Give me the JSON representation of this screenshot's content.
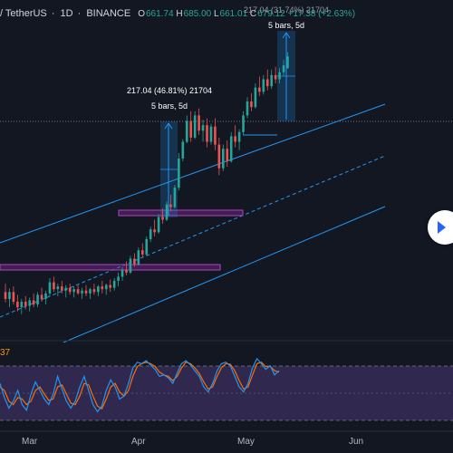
{
  "header": {
    "symbol": "/ TetherUS",
    "interval": "1D",
    "exchange": "BINANCE",
    "ohlc": {
      "o_label": "O",
      "o": "661.74",
      "h_label": "H",
      "h": "685.00",
      "l_label": "L",
      "l": "661.01",
      "c_label": "C",
      "c": "679.12",
      "change": "+17.38 (+2.63%)"
    }
  },
  "annotations": {
    "measure1_value": "217.04 (46.81%) 21704",
    "measure1_bars": "5 bars, 5d",
    "measure2_value": "217.04 (31.74%) 21704",
    "measure2_bars": "5 bars, 5d"
  },
  "oscillator": {
    "label": "37"
  },
  "colors": {
    "up": "#26a69a",
    "down": "#ef5350",
    "channel": "#2196f3",
    "zone": "#9c27b0",
    "k_line": "#2196f3",
    "d_line": "#ff6d00"
  },
  "icons": {
    "nav": "chevron-right-icon"
  },
  "chart_data": {
    "type": "candlestick",
    "x_ticks": [
      "Mar",
      "Apr",
      "May",
      "Jun"
    ],
    "price_ylim": [
      270,
      760
    ],
    "candles": [
      [
        340,
        352,
        325,
        330
      ],
      [
        330,
        345,
        318,
        340
      ],
      [
        340,
        348,
        322,
        326
      ],
      [
        326,
        336,
        312,
        318
      ],
      [
        318,
        330,
        308,
        326
      ],
      [
        326,
        334,
        315,
        320
      ],
      [
        320,
        332,
        312,
        328
      ],
      [
        328,
        338,
        318,
        322
      ],
      [
        322,
        340,
        318,
        336
      ],
      [
        336,
        346,
        326,
        330
      ],
      [
        330,
        342,
        322,
        338
      ],
      [
        338,
        360,
        334,
        354
      ],
      [
        354,
        362,
        340,
        344
      ],
      [
        344,
        352,
        334,
        348
      ],
      [
        348,
        356,
        338,
        342
      ],
      [
        342,
        350,
        332,
        346
      ],
      [
        346,
        352,
        336,
        340
      ],
      [
        340,
        348,
        332,
        344
      ],
      [
        344,
        350,
        336,
        338
      ],
      [
        338,
        346,
        330,
        342
      ],
      [
        342,
        350,
        334,
        338
      ],
      [
        338,
        346,
        330,
        344
      ],
      [
        344,
        352,
        336,
        340
      ],
      [
        340,
        350,
        334,
        348
      ],
      [
        348,
        356,
        338,
        344
      ],
      [
        344,
        352,
        336,
        350
      ],
      [
        350,
        358,
        340,
        346
      ],
      [
        346,
        360,
        342,
        356
      ],
      [
        356,
        368,
        348,
        362
      ],
      [
        362,
        376,
        356,
        372
      ],
      [
        372,
        384,
        364,
        368
      ],
      [
        368,
        392,
        366,
        388
      ],
      [
        388,
        396,
        376,
        380
      ],
      [
        380,
        404,
        378,
        400
      ],
      [
        400,
        410,
        390,
        394
      ],
      [
        394,
        420,
        392,
        416
      ],
      [
        416,
        434,
        412,
        430
      ],
      [
        430,
        444,
        420,
        426
      ],
      [
        426,
        452,
        424,
        448
      ],
      [
        448,
        460,
        438,
        444
      ],
      [
        444,
        470,
        442,
        466
      ],
      [
        466,
        480,
        456,
        462
      ],
      [
        462,
        494,
        460,
        490
      ],
      [
        490,
        540,
        486,
        532
      ],
      [
        532,
        560,
        528,
        556
      ],
      [
        556,
        594,
        554,
        586
      ],
      [
        586,
        600,
        556,
        562
      ],
      [
        562,
        600,
        560,
        594
      ],
      [
        594,
        604,
        566,
        572
      ],
      [
        572,
        588,
        556,
        580
      ],
      [
        580,
        590,
        548,
        556
      ],
      [
        556,
        582,
        552,
        578
      ],
      [
        578,
        590,
        544,
        552
      ],
      [
        552,
        562,
        508,
        518
      ],
      [
        518,
        552,
        514,
        546
      ],
      [
        546,
        558,
        520,
        528
      ],
      [
        528,
        570,
        526,
        564
      ],
      [
        564,
        580,
        548,
        556
      ],
      [
        556,
        574,
        544,
        570
      ],
      [
        570,
        600,
        566,
        594
      ],
      [
        594,
        620,
        590,
        614
      ],
      [
        614,
        626,
        600,
        606
      ],
      [
        606,
        640,
        604,
        634
      ],
      [
        634,
        650,
        622,
        628
      ],
      [
        628,
        652,
        624,
        646
      ],
      [
        646,
        660,
        630,
        636
      ],
      [
        636,
        660,
        632,
        652
      ],
      [
        652,
        664,
        640,
        646
      ],
      [
        646,
        662,
        640,
        656
      ],
      [
        656,
        674,
        650,
        666
      ],
      [
        662,
        685,
        661,
        679
      ]
    ],
    "stoch_k": [
      60,
      40,
      25,
      35,
      50,
      30,
      22,
      45,
      62,
      50,
      38,
      30,
      45,
      70,
      52,
      35,
      25,
      35,
      55,
      70,
      50,
      30,
      20,
      28,
      50,
      65,
      55,
      38,
      42,
      60,
      82,
      90,
      88,
      92,
      86,
      80,
      70,
      72,
      68,
      60,
      75,
      88,
      92,
      86,
      78,
      70,
      55,
      48,
      60,
      78,
      88,
      90,
      85,
      70,
      55,
      48,
      60,
      82,
      95,
      88,
      80,
      85,
      72,
      78
    ],
    "stoch_d": [
      55,
      50,
      35,
      30,
      40,
      38,
      30,
      35,
      50,
      55,
      45,
      36,
      38,
      55,
      58,
      45,
      32,
      30,
      42,
      60,
      58,
      42,
      28,
      24,
      38,
      55,
      60,
      48,
      42,
      50,
      70,
      84,
      88,
      90,
      88,
      84,
      76,
      72,
      70,
      64,
      70,
      82,
      90,
      88,
      82,
      74,
      62,
      52,
      55,
      70,
      82,
      88,
      87,
      78,
      64,
      52,
      55,
      72,
      88,
      90,
      84,
      84,
      78,
      76
    ]
  }
}
